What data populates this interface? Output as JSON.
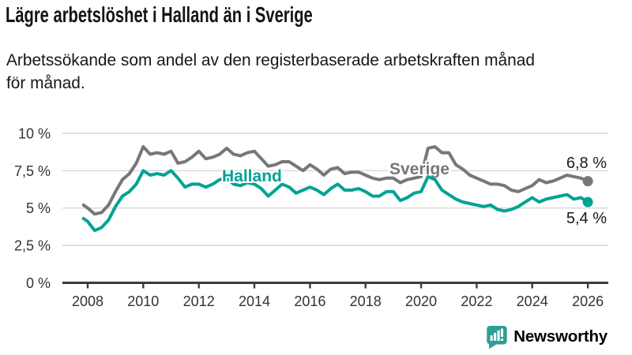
{
  "header": {
    "title": "Lägre arbetslöshet i Halland än i Sverige",
    "subtitle": "Arbetssökande som andel av den registerbaserade arbetskraften månad\nför månad."
  },
  "footer": {
    "brand": "Newsworthy",
    "logo_color": "#2f9e95"
  },
  "chart_data": {
    "type": "line",
    "title": "Lägre arbetslöshet i Halland än i Sverige",
    "subtitle": "Arbetssökande som andel av den registerbaserade arbetskraften månad för månad.",
    "unit": "%",
    "grid": "horizontal",
    "legend_position": "inline-labels",
    "x_axis": {
      "range": [
        2007.7,
        2026.7
      ],
      "ticks": [
        "2008",
        "2010",
        "2012",
        "2014",
        "2016",
        "2018",
        "2020",
        "2022",
        "2024",
        "2026"
      ]
    },
    "y_axis": {
      "range": [
        0,
        10.5
      ],
      "ticks": [
        {
          "v": 0,
          "label": "0 %"
        },
        {
          "v": 2.5,
          "label": "2,5 %"
        },
        {
          "v": 5,
          "label": "5 %"
        },
        {
          "v": 7.5,
          "label": "7,5 %"
        },
        {
          "v": 10,
          "label": "10 %"
        }
      ]
    },
    "x": [
      2007.85,
      2008,
      2008.25,
      2008.5,
      2008.75,
      2009,
      2009.25,
      2009.5,
      2009.75,
      2010,
      2010.25,
      2010.5,
      2010.75,
      2011,
      2011.25,
      2011.5,
      2011.75,
      2012,
      2012.25,
      2012.5,
      2012.75,
      2013,
      2013.25,
      2013.5,
      2013.75,
      2014,
      2014.25,
      2014.5,
      2014.75,
      2015,
      2015.25,
      2015.5,
      2015.75,
      2016,
      2016.25,
      2016.5,
      2016.75,
      2017,
      2017.25,
      2017.5,
      2017.75,
      2018,
      2018.25,
      2018.5,
      2018.75,
      2019,
      2019.25,
      2019.5,
      2019.75,
      2020,
      2020.25,
      2020.5,
      2020.75,
      2021,
      2021.25,
      2021.5,
      2021.75,
      2022,
      2022.25,
      2022.5,
      2022.75,
      2023,
      2023.25,
      2023.5,
      2023.75,
      2024,
      2024.25,
      2024.5,
      2024.75,
      2025,
      2025.25,
      2025.5,
      2025.75,
      2026
    ],
    "series": [
      {
        "name": "Sverige",
        "color": "#76767b",
        "end_label": "6,8 %",
        "end_value": 6.8,
        "values": [
          5.2,
          5.0,
          4.6,
          4.7,
          5.2,
          6.1,
          6.9,
          7.3,
          8.0,
          9.1,
          8.6,
          8.7,
          8.6,
          8.8,
          8.0,
          8.1,
          8.4,
          8.8,
          8.3,
          8.4,
          8.6,
          9.0,
          8.6,
          8.5,
          8.7,
          8.8,
          8.3,
          7.8,
          7.9,
          8.1,
          8.1,
          7.8,
          7.5,
          7.9,
          7.6,
          7.2,
          7.6,
          7.7,
          7.3,
          7.4,
          7.4,
          7.2,
          7.0,
          6.9,
          7.0,
          7.0,
          6.7,
          6.9,
          7.0,
          7.1,
          9.0,
          9.1,
          8.7,
          8.7,
          7.9,
          7.6,
          7.2,
          7.0,
          6.8,
          6.6,
          6.6,
          6.5,
          6.2,
          6.1,
          6.3,
          6.5,
          6.9,
          6.7,
          6.8,
          7.0,
          7.2,
          7.1,
          7.0,
          6.8
        ]
      },
      {
        "name": "Halland",
        "color": "#04a294",
        "end_label": "5,4 %",
        "end_value": 5.4,
        "values": [
          4.3,
          4.1,
          3.5,
          3.7,
          4.2,
          5.1,
          5.8,
          6.1,
          6.6,
          7.5,
          7.2,
          7.3,
          7.2,
          7.5,
          7.0,
          6.4,
          6.6,
          6.6,
          6.4,
          6.6,
          6.9,
          7.0,
          6.6,
          6.5,
          6.7,
          6.6,
          6.3,
          5.8,
          6.2,
          6.6,
          6.4,
          6.0,
          6.2,
          6.4,
          6.2,
          5.9,
          6.3,
          6.6,
          6.2,
          6.2,
          6.3,
          6.1,
          5.8,
          5.8,
          6.1,
          6.1,
          5.5,
          5.7,
          6.0,
          6.1,
          7.1,
          6.9,
          6.2,
          5.9,
          5.6,
          5.4,
          5.3,
          5.2,
          5.1,
          5.2,
          4.9,
          4.8,
          4.9,
          5.1,
          5.4,
          5.7,
          5.4,
          5.6,
          5.7,
          5.8,
          5.9,
          5.6,
          5.7,
          5.4
        ]
      }
    ]
  }
}
